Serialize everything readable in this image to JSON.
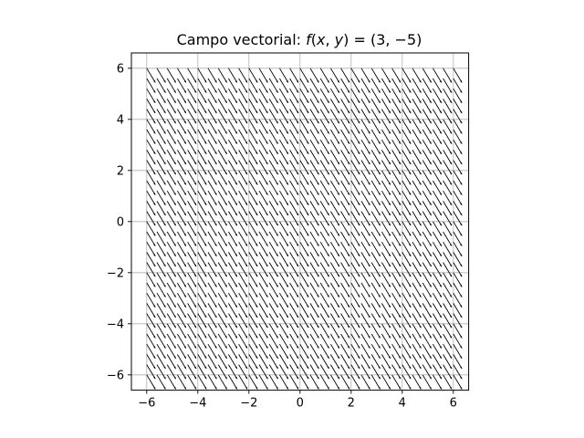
{
  "chart_data": {
    "type": "quiver",
    "title": {
      "prefix": "Campo vectorial: ",
      "func": "f",
      "args_open": "(",
      "var_x": "x",
      "comma": ", ",
      "var_y": "y",
      "args_close": ")",
      "equals": " = ",
      "value": "(3, −5)"
    },
    "vector": {
      "u": 3,
      "v": -5
    },
    "grid_x": {
      "start": -6,
      "stop": 6.2,
      "step": 0.4
    },
    "grid_y": {
      "start": -6,
      "stop": 6.2,
      "step": 0.4
    },
    "xlim": [
      -6.6,
      6.6
    ],
    "ylim": [
      -6.6,
      6.6
    ],
    "xticks": [
      -6,
      -4,
      -2,
      0,
      2,
      4,
      6
    ],
    "yticks": [
      -6,
      -4,
      -2,
      0,
      2,
      4,
      6
    ],
    "xtick_labels": [
      "−6",
      "−4",
      "−2",
      "0",
      "2",
      "4",
      "6"
    ],
    "ytick_labels": [
      "−6",
      "−4",
      "−2",
      "0",
      "2",
      "4",
      "6"
    ],
    "xlabel": "",
    "ylabel": "",
    "grid": true,
    "aspect": "equal",
    "arrow_color": "#000000",
    "grid_color": "#b0b0b0"
  }
}
